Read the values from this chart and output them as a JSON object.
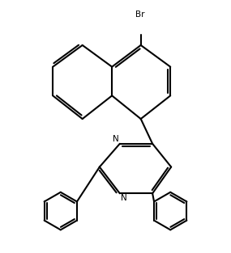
{
  "bg_color": "#ffffff",
  "bond_color": "#000000",
  "lw": 1.5,
  "figure_width": 2.85,
  "figure_height": 3.13,
  "dpi": 100,
  "br_label": "Br",
  "n_label": "N",
  "font_size_br": 7.5,
  "font_size_n": 7.5
}
